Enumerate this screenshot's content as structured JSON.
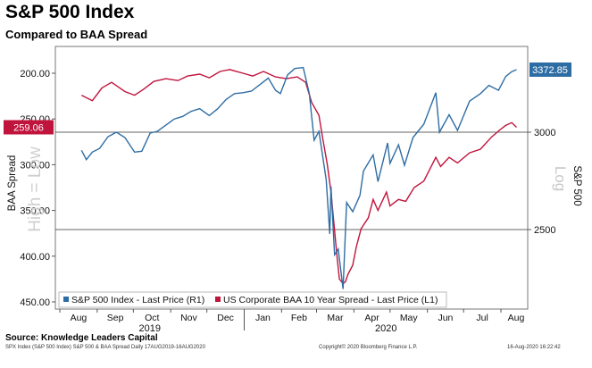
{
  "title": "S&P 500 Index",
  "subtitle": "Compared to BAA Spread",
  "source": "Source: Knowledge Leaders Capital",
  "footer": {
    "left": "SPX Index (S&P 500 Index) S&P 500 & BAA Spread  Daily 17AUG2019-16AUG2020",
    "center": "Copyright© 2020 Bloomberg Finance L.P.",
    "right": "16-Aug-2020 16:22:42"
  },
  "colors": {
    "spx": "#2e6da4",
    "baa": "#c0143c",
    "grid": "#bdbdbd",
    "plot_bg": "#ffffff"
  },
  "chart_data": {
    "type": "line",
    "left_axis": {
      "label": "BAA Spread",
      "inverted": true,
      "ticks": [
        "200.00",
        "250.00",
        "300.00",
        "350.00",
        "400.00",
        "450.00"
      ],
      "tick_values": [
        200,
        250,
        300,
        350,
        400,
        450
      ]
    },
    "right_axis": {
      "label": "S&P 500",
      "scale_label": "Log",
      "ticks": [
        "3000",
        "2500"
      ],
      "tick_values": [
        3000,
        2500
      ]
    },
    "overlay_text": "High = Low",
    "x_axis": {
      "months": [
        "Aug",
        "Sep",
        "Oct",
        "Nov",
        "Dec",
        "Jan",
        "Feb",
        "Mar",
        "Apr",
        "May",
        "Jun",
        "Jul",
        "Aug"
      ],
      "years": [
        "2019",
        "2020"
      ]
    },
    "last_values": {
      "spx": "3372.85",
      "baa": "259.06"
    },
    "series": [
      {
        "name": "S&P 500 Index - Last Price (R1)",
        "axis": "right",
        "points": [
          [
            "2019-08-19",
            2900
          ],
          [
            "2019-08-23",
            2850
          ],
          [
            "2019-08-28",
            2890
          ],
          [
            "2019-09-03",
            2910
          ],
          [
            "2019-09-10",
            2975
          ],
          [
            "2019-09-17",
            3000
          ],
          [
            "2019-09-24",
            2970
          ],
          [
            "2019-10-02",
            2890
          ],
          [
            "2019-10-08",
            2895
          ],
          [
            "2019-10-15",
            2995
          ],
          [
            "2019-10-21",
            3005
          ],
          [
            "2019-10-28",
            3040
          ],
          [
            "2019-11-04",
            3075
          ],
          [
            "2019-11-11",
            3090
          ],
          [
            "2019-11-18",
            3120
          ],
          [
            "2019-11-25",
            3135
          ],
          [
            "2019-12-03",
            3095
          ],
          [
            "2019-12-10",
            3135
          ],
          [
            "2019-12-17",
            3190
          ],
          [
            "2019-12-24",
            3225
          ],
          [
            "2019-12-31",
            3230
          ],
          [
            "2020-01-07",
            3240
          ],
          [
            "2020-01-14",
            3280
          ],
          [
            "2020-01-21",
            3320
          ],
          [
            "2020-01-27",
            3245
          ],
          [
            "2020-01-31",
            3225
          ],
          [
            "2020-02-06",
            3340
          ],
          [
            "2020-02-12",
            3380
          ],
          [
            "2020-02-19",
            3386
          ],
          [
            "2020-02-24",
            3225
          ],
          [
            "2020-02-28",
            2955
          ],
          [
            "2020-03-03",
            3005
          ],
          [
            "2020-03-09",
            2745
          ],
          [
            "2020-03-12",
            2480
          ],
          [
            "2020-03-13",
            2710
          ],
          [
            "2020-03-16",
            2385
          ],
          [
            "2020-03-19",
            2410
          ],
          [
            "2020-03-23",
            2237
          ],
          [
            "2020-03-26",
            2630
          ],
          [
            "2020-03-31",
            2585
          ],
          [
            "2020-04-06",
            2665
          ],
          [
            "2020-04-09",
            2790
          ],
          [
            "2020-04-17",
            2875
          ],
          [
            "2020-04-21",
            2735
          ],
          [
            "2020-04-29",
            2940
          ],
          [
            "2020-05-01",
            2830
          ],
          [
            "2020-05-08",
            2930
          ],
          [
            "2020-05-13",
            2820
          ],
          [
            "2020-05-20",
            2970
          ],
          [
            "2020-05-29",
            3045
          ],
          [
            "2020-06-08",
            3230
          ],
          [
            "2020-06-11",
            3000
          ],
          [
            "2020-06-19",
            3100
          ],
          [
            "2020-06-26",
            3010
          ],
          [
            "2020-07-06",
            3180
          ],
          [
            "2020-07-15",
            3225
          ],
          [
            "2020-07-22",
            3275
          ],
          [
            "2020-07-30",
            3245
          ],
          [
            "2020-08-05",
            3330
          ],
          [
            "2020-08-10",
            3360
          ],
          [
            "2020-08-14",
            3372.85
          ]
        ]
      },
      {
        "name": "US Corporate BAA 10 Year Spread - Last Price (L1)",
        "axis": "left",
        "points": [
          [
            "2019-08-19",
            224
          ],
          [
            "2019-08-28",
            230
          ],
          [
            "2019-09-05",
            216
          ],
          [
            "2019-09-13",
            210
          ],
          [
            "2019-09-24",
            220
          ],
          [
            "2019-10-02",
            224
          ],
          [
            "2019-10-09",
            218
          ],
          [
            "2019-10-18",
            209
          ],
          [
            "2019-10-28",
            206
          ],
          [
            "2019-11-07",
            208
          ],
          [
            "2019-11-15",
            203
          ],
          [
            "2019-11-25",
            201
          ],
          [
            "2019-12-03",
            205
          ],
          [
            "2019-12-12",
            198
          ],
          [
            "2019-12-20",
            196
          ],
          [
            "2019-12-31",
            200
          ],
          [
            "2020-01-08",
            203
          ],
          [
            "2020-01-17",
            198
          ],
          [
            "2020-01-27",
            204
          ],
          [
            "2020-02-05",
            206
          ],
          [
            "2020-02-14",
            204
          ],
          [
            "2020-02-21",
            210
          ],
          [
            "2020-02-26",
            232
          ],
          [
            "2020-03-03",
            246
          ],
          [
            "2020-03-06",
            270
          ],
          [
            "2020-03-10",
            300
          ],
          [
            "2020-03-13",
            330
          ],
          [
            "2020-03-16",
            372
          ],
          [
            "2020-03-18",
            400
          ],
          [
            "2020-03-20",
            425
          ],
          [
            "2020-03-23",
            430
          ],
          [
            "2020-03-25",
            428
          ],
          [
            "2020-03-27",
            420
          ],
          [
            "2020-03-31",
            410
          ],
          [
            "2020-04-03",
            390
          ],
          [
            "2020-04-07",
            370
          ],
          [
            "2020-04-13",
            358
          ],
          [
            "2020-04-17",
            338
          ],
          [
            "2020-04-21",
            350
          ],
          [
            "2020-04-28",
            330
          ],
          [
            "2020-05-01",
            345
          ],
          [
            "2020-05-08",
            338
          ],
          [
            "2020-05-14",
            340
          ],
          [
            "2020-05-21",
            325
          ],
          [
            "2020-05-29",
            318
          ],
          [
            "2020-06-08",
            292
          ],
          [
            "2020-06-12",
            302
          ],
          [
            "2020-06-19",
            292
          ],
          [
            "2020-06-26",
            298
          ],
          [
            "2020-07-06",
            287
          ],
          [
            "2020-07-15",
            283
          ],
          [
            "2020-07-24",
            270
          ],
          [
            "2020-07-31",
            262
          ],
          [
            "2020-08-05",
            257
          ],
          [
            "2020-08-10",
            254
          ],
          [
            "2020-08-14",
            259.06
          ]
        ]
      }
    ]
  }
}
